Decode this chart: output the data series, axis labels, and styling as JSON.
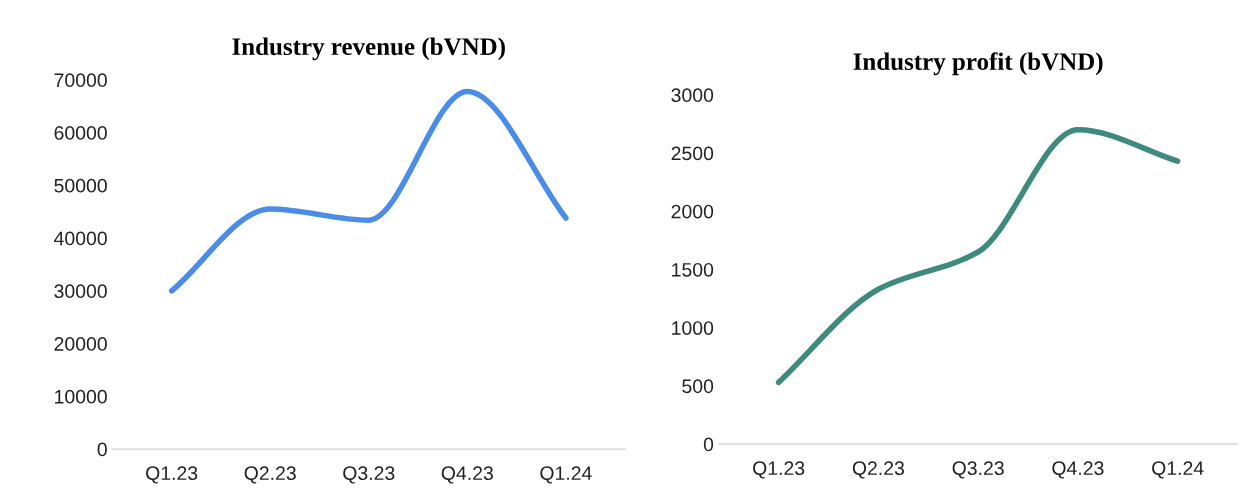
{
  "chart_data": [
    {
      "type": "line",
      "title": "Industry revenue (bVND)",
      "categories": [
        "Q1.23",
        "Q2.23",
        "Q3.23",
        "Q4.23",
        "Q1.24"
      ],
      "series": [
        {
          "color": "#4a8ce8",
          "values": [
            30000,
            45500,
            43400,
            67800,
            43800
          ]
        }
      ],
      "ylim": [
        0,
        70000
      ],
      "yticks": [
        0,
        10000,
        20000,
        30000,
        40000,
        50000,
        60000,
        70000
      ],
      "grid": false,
      "marker": "none",
      "line_style": "solid"
    },
    {
      "type": "line",
      "title": "Industry profit (bVND)",
      "categories": [
        "Q1.23",
        "Q2.23",
        "Q3.23",
        "Q4.23",
        "Q1.24"
      ],
      "series": [
        {
          "color": "#3f8a7f",
          "values": [
            530,
            1330,
            1650,
            2700,
            2430
          ]
        }
      ],
      "ylim": [
        0,
        3000
      ],
      "yticks": [
        0,
        500,
        1000,
        1500,
        2000,
        2500,
        3000
      ],
      "grid": false,
      "marker": "none",
      "line_style": "solid"
    }
  ]
}
